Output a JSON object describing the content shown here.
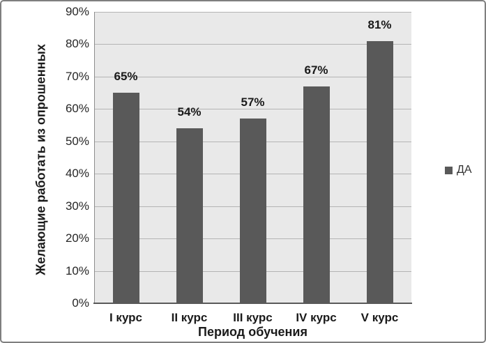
{
  "chart_data": {
    "type": "bar",
    "title": "",
    "categories": [
      "I курс",
      "II курс",
      "III курс",
      "IV курс",
      "V курс"
    ],
    "series": [
      {
        "name": "ДА",
        "values": [
          65,
          54,
          57,
          67,
          81
        ]
      }
    ],
    "data_labels": [
      "65%",
      "54%",
      "57%",
      "67%",
      "81%"
    ],
    "xlabel": "Период обучения",
    "ylabel": "Желающие работать из опрошенных",
    "ylim": [
      0,
      90
    ],
    "ytick_step": 10,
    "ytick_labels": [
      "0%",
      "10%",
      "20%",
      "30%",
      "40%",
      "50%",
      "60%",
      "70%",
      "80%",
      "90%"
    ],
    "grid": true,
    "legend_position": "right",
    "colors": {
      "bar": "#595959",
      "plot_bg": "#e9e9e9",
      "gridline": "#b4b4b4",
      "axis_y": "#8c8c8c",
      "axis_x": "#595959",
      "text": "#1a1a1a",
      "chart_border": "#7f7f7f"
    }
  }
}
